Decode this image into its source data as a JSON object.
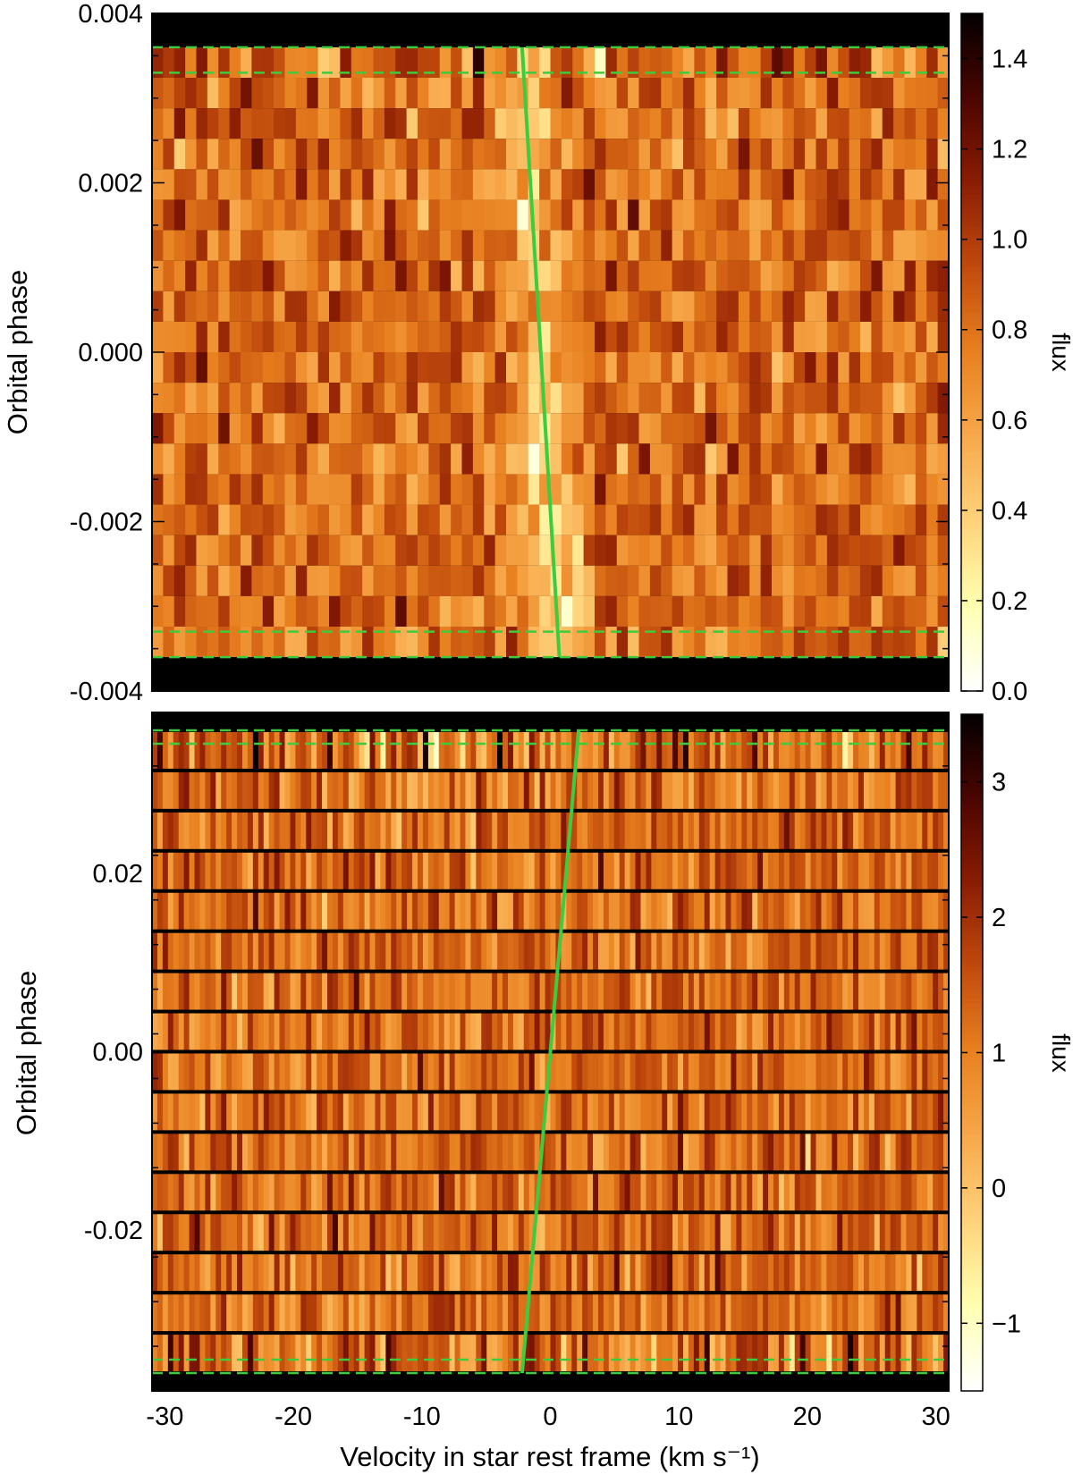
{
  "colors": {
    "colormap": [
      "#ffffff",
      "#ffffb0",
      "#ffd27a",
      "#f7a84a",
      "#e8801f",
      "#c04a0c",
      "#8a1c04",
      "#4a0500",
      "#000000"
    ],
    "model_line": "#3dcc3d",
    "background_band": "#000000"
  },
  "chart_data": [
    {
      "type": "heatmap",
      "panel": "top",
      "title": "",
      "xlabel": "",
      "ylabel": "Orbital phase",
      "xlim": [
        -31,
        31
      ],
      "ylim": [
        -0.004,
        0.004
      ],
      "yticks": [
        -0.004,
        -0.002,
        0.0,
        0.002,
        0.004
      ],
      "ytick_labels": [
        "-0.004",
        "-0.002",
        "0.000",
        "0.002",
        "0.004"
      ],
      "colorbar": {
        "label": "flux",
        "range": [
          0.0,
          1.5
        ],
        "ticks": [
          0.0,
          0.2,
          0.4,
          0.6,
          0.8,
          1.0,
          1.2,
          1.4
        ],
        "tick_labels": [
          "0.0",
          "0.2",
          "0.4",
          "0.6",
          "0.8",
          "1.0",
          "1.2",
          "1.4"
        ]
      },
      "exposure_rows": 20,
      "data_phase_range": [
        -0.0036,
        0.0036
      ],
      "velocity_bins": 72,
      "signal": {
        "description_center_kms": [
          -1,
          1
        ],
        "trough_flux": 0.3
      },
      "transit_limits": {
        "ingress": [
          -0.0036,
          -0.0033
        ],
        "egress": [
          0.0033,
          0.0036
        ]
      },
      "model_line": {
        "x": [
          0.7,
          -2.2
        ],
        "y": [
          -0.0036,
          0.0036
        ]
      }
    },
    {
      "type": "heatmap",
      "panel": "bottom",
      "title": "",
      "xlabel": "Velocity in star rest frame (km s⁻¹)",
      "ylabel": "Orbital phase",
      "xlim": [
        -31,
        31
      ],
      "ylim": [
        -0.038,
        0.038
      ],
      "xticks": [
        -30,
        -20,
        -10,
        0,
        10,
        20,
        30
      ],
      "xtick_labels": [
        "-30",
        "-20",
        "-10",
        "0",
        "10",
        "20",
        "30"
      ],
      "yticks": [
        -0.02,
        0.0,
        0.02
      ],
      "ytick_labels": [
        "-0.02",
        "0.00",
        "0.02"
      ],
      "colorbar": {
        "label": "flux",
        "range": [
          -1.5,
          3.5
        ],
        "ticks": [
          -1,
          0,
          1,
          2,
          3
        ],
        "tick_labels": [
          "−1",
          "0",
          "1",
          "2",
          "3"
        ]
      },
      "exposure_rows": 16,
      "data_phase_range": [
        -0.036,
        0.036
      ],
      "velocity_bins": 150,
      "transit_limits": {
        "ingress": [
          -0.036,
          -0.0345
        ],
        "egress": [
          0.0345,
          0.036
        ]
      },
      "model_line": {
        "x": [
          -2.2,
          2.2
        ],
        "y": [
          -0.036,
          0.036
        ]
      }
    }
  ]
}
